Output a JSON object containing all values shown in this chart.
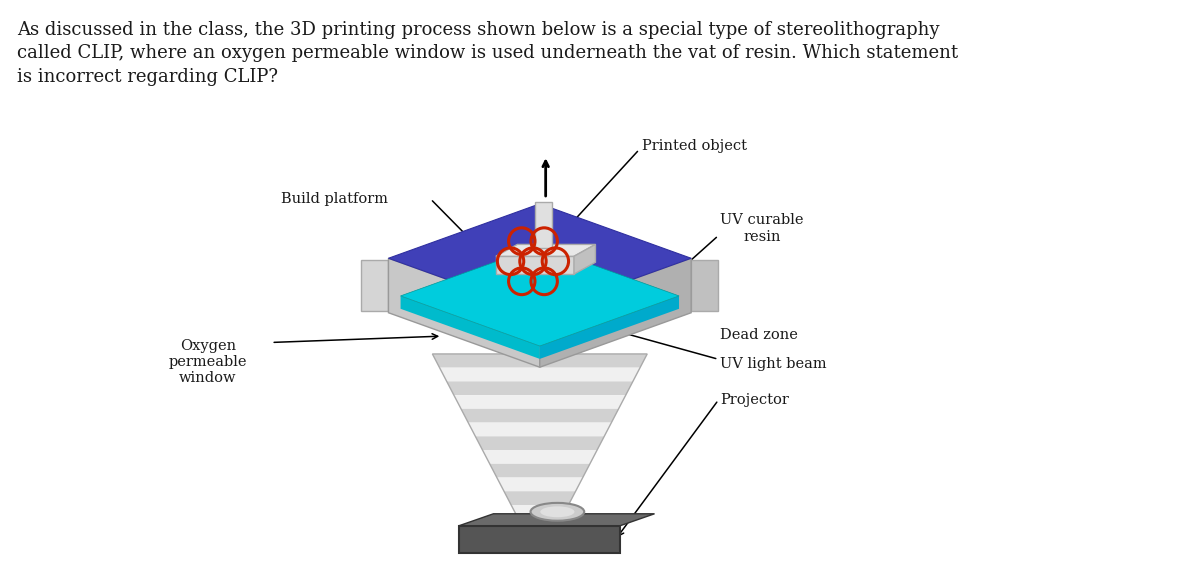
{
  "title_text": "As discussed in the class, the 3D printing process shown below is a special type of stereolithography\ncalled CLIP, where an oxygen permeable window is used underneath the vat of resin. Which statement\nis incorrect regarding CLIP?",
  "title_fontsize": 13.0,
  "bg_color": "#ffffff",
  "labels": {
    "build_platform": "Build platform",
    "printed_object": "Printed object",
    "uv_curable_resin": "UV curable\nresin",
    "dead_zone": "Dead zone",
    "uv_light_beam": "UV light beam",
    "projector": "Projector",
    "oxygen_window": "Oxygen\npermeable\nwindow"
  },
  "label_fontsize": 10.5
}
